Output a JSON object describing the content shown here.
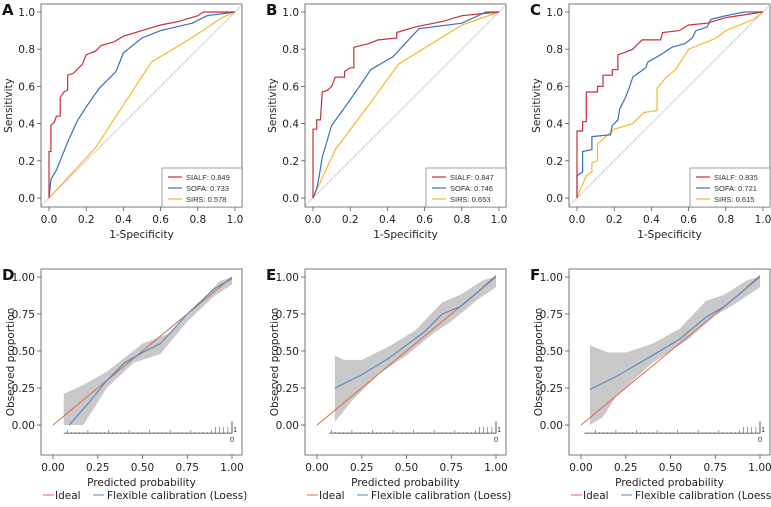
{
  "colors": {
    "SIALF": "#c8303a",
    "SOFA": "#3b6fb5",
    "SIRS": "#f2b833",
    "diagonal": "#c8c8c8",
    "ideal": "#e0654a",
    "loess": "#4f86c6",
    "band": "#c9c9c9"
  },
  "chart_data": [
    {
      "panel": "A",
      "type": "line",
      "xlabel": "1-Specificity",
      "ylabel": "Sensitivity",
      "xlim": [
        0,
        1
      ],
      "ylim": [
        0,
        1
      ],
      "xticks": [
        "0.0",
        "0.2",
        "0.4",
        "0.6",
        "0.8",
        "1.0"
      ],
      "yticks": [
        "0.0",
        "0.2",
        "0.4",
        "0.6",
        "0.8",
        "1.0"
      ],
      "legend_placement": "bottom-right",
      "grid": false,
      "series": [
        {
          "name": "SIALF",
          "auc_label": "SIALF: 0.849",
          "points": [
            [
              0,
              0
            ],
            [
              0,
              0.25
            ],
            [
              0.01,
              0.25
            ],
            [
              0.01,
              0.39
            ],
            [
              0.03,
              0.41
            ],
            [
              0.04,
              0.44
            ],
            [
              0.06,
              0.44
            ],
            [
              0.06,
              0.54
            ],
            [
              0.08,
              0.57
            ],
            [
              0.1,
              0.58
            ],
            [
              0.1,
              0.66
            ],
            [
              0.13,
              0.67
            ],
            [
              0.15,
              0.69
            ],
            [
              0.18,
              0.72
            ],
            [
              0.2,
              0.77
            ],
            [
              0.25,
              0.79
            ],
            [
              0.28,
              0.82
            ],
            [
              0.35,
              0.84
            ],
            [
              0.4,
              0.87
            ],
            [
              0.5,
              0.9
            ],
            [
              0.6,
              0.93
            ],
            [
              0.7,
              0.95
            ],
            [
              0.8,
              0.98
            ],
            [
              0.83,
              1
            ],
            [
              1,
              1
            ]
          ]
        },
        {
          "name": "SOFA",
          "auc_label": "SOFA: 0.733",
          "points": [
            [
              0,
              0
            ],
            [
              0.01,
              0.1
            ],
            [
              0.04,
              0.15
            ],
            [
              0.1,
              0.3
            ],
            [
              0.15,
              0.41
            ],
            [
              0.2,
              0.49
            ],
            [
              0.27,
              0.59
            ],
            [
              0.36,
              0.68
            ],
            [
              0.4,
              0.78
            ],
            [
              0.5,
              0.86
            ],
            [
              0.6,
              0.9
            ],
            [
              0.77,
              0.94
            ],
            [
              0.85,
              0.98
            ],
            [
              1,
              1
            ]
          ]
        },
        {
          "name": "SIRS",
          "auc_label": "SIRS:  0.578",
          "points": [
            [
              0,
              0
            ],
            [
              0.25,
              0.27
            ],
            [
              0.55,
              0.73
            ],
            [
              0.75,
              0.85
            ],
            [
              0.93,
              0.97
            ],
            [
              1,
              1
            ]
          ]
        }
      ]
    },
    {
      "panel": "B",
      "type": "line",
      "xlabel": "1-Specificity",
      "ylabel": "Sensitivity",
      "xlim": [
        0,
        1
      ],
      "ylim": [
        0,
        1
      ],
      "xticks": [
        "0.0",
        "0.2",
        "0.4",
        "0.6",
        "0.8",
        "1.0"
      ],
      "yticks": [
        "0.0",
        "0.2",
        "0.4",
        "0.6",
        "0.8",
        "1.0"
      ],
      "legend_placement": "bottom-right",
      "grid": false,
      "series": [
        {
          "name": "SIALF",
          "auc_label": "SIALF: 0.847",
          "points": [
            [
              0,
              0
            ],
            [
              0,
              0.37
            ],
            [
              0.02,
              0.37
            ],
            [
              0.02,
              0.42
            ],
            [
              0.04,
              0.42
            ],
            [
              0.05,
              0.57
            ],
            [
              0.08,
              0.58
            ],
            [
              0.1,
              0.6
            ],
            [
              0.12,
              0.65
            ],
            [
              0.17,
              0.65
            ],
            [
              0.17,
              0.68
            ],
            [
              0.2,
              0.7
            ],
            [
              0.22,
              0.7
            ],
            [
              0.22,
              0.81
            ],
            [
              0.3,
              0.83
            ],
            [
              0.35,
              0.85
            ],
            [
              0.45,
              0.86
            ],
            [
              0.45,
              0.89
            ],
            [
              0.55,
              0.92
            ],
            [
              0.7,
              0.95
            ],
            [
              0.8,
              0.98
            ],
            [
              1,
              1
            ]
          ]
        },
        {
          "name": "SOFA",
          "auc_label": "SOFA: 0.746",
          "points": [
            [
              0,
              0
            ],
            [
              0.02,
              0.05
            ],
            [
              0.03,
              0.1
            ],
            [
              0.05,
              0.22
            ],
            [
              0.1,
              0.39
            ],
            [
              0.18,
              0.5
            ],
            [
              0.25,
              0.6
            ],
            [
              0.31,
              0.69
            ],
            [
              0.43,
              0.76
            ],
            [
              0.57,
              0.91
            ],
            [
              0.8,
              0.94
            ],
            [
              0.93,
              1
            ],
            [
              1,
              1
            ]
          ]
        },
        {
          "name": "SIRS",
          "auc_label": "SIRS:  0.653",
          "points": [
            [
              0,
              0
            ],
            [
              0.12,
              0.26
            ],
            [
              0.3,
              0.5
            ],
            [
              0.46,
              0.72
            ],
            [
              0.8,
              0.93
            ],
            [
              1,
              1
            ]
          ]
        }
      ]
    },
    {
      "panel": "C",
      "type": "line",
      "xlabel": "1-Specificity",
      "ylabel": "Sensitivity",
      "xlim": [
        0,
        1
      ],
      "ylim": [
        0,
        1
      ],
      "xticks": [
        "0.0",
        "0.2",
        "0.4",
        "0.6",
        "0.8",
        "1.0"
      ],
      "yticks": [
        "0.0",
        "0.2",
        "0.4",
        "0.6",
        "0.8",
        "1.0"
      ],
      "legend_placement": "bottom-right",
      "grid": false,
      "series": [
        {
          "name": "SIALF",
          "auc_label": "SIALF: 0.835",
          "points": [
            [
              0,
              0
            ],
            [
              0,
              0.36
            ],
            [
              0.03,
              0.36
            ],
            [
              0.03,
              0.41
            ],
            [
              0.05,
              0.41
            ],
            [
              0.05,
              0.57
            ],
            [
              0.11,
              0.57
            ],
            [
              0.11,
              0.6
            ],
            [
              0.14,
              0.6
            ],
            [
              0.14,
              0.66
            ],
            [
              0.19,
              0.66
            ],
            [
              0.19,
              0.69
            ],
            [
              0.22,
              0.69
            ],
            [
              0.22,
              0.77
            ],
            [
              0.25,
              0.78
            ],
            [
              0.3,
              0.8
            ],
            [
              0.33,
              0.83
            ],
            [
              0.35,
              0.85
            ],
            [
              0.45,
              0.85
            ],
            [
              0.46,
              0.89
            ],
            [
              0.55,
              0.9
            ],
            [
              0.6,
              0.93
            ],
            [
              0.7,
              0.94
            ],
            [
              0.8,
              0.97
            ],
            [
              1,
              1
            ]
          ]
        },
        {
          "name": "SOFA",
          "auc_label": "SOFA: 0.721",
          "points": [
            [
              0,
              0
            ],
            [
              0,
              0.12
            ],
            [
              0.03,
              0.14
            ],
            [
              0.03,
              0.25
            ],
            [
              0.08,
              0.26
            ],
            [
              0.08,
              0.33
            ],
            [
              0.18,
              0.34
            ],
            [
              0.19,
              0.39
            ],
            [
              0.22,
              0.42
            ],
            [
              0.23,
              0.48
            ],
            [
              0.26,
              0.54
            ],
            [
              0.28,
              0.59
            ],
            [
              0.3,
              0.65
            ],
            [
              0.37,
              0.7
            ],
            [
              0.38,
              0.73
            ],
            [
              0.45,
              0.77
            ],
            [
              0.51,
              0.81
            ],
            [
              0.58,
              0.83
            ],
            [
              0.62,
              0.86
            ],
            [
              0.64,
              0.9
            ],
            [
              0.7,
              0.92
            ],
            [
              0.72,
              0.96
            ],
            [
              0.8,
              0.98
            ],
            [
              0.9,
              1
            ],
            [
              1,
              1
            ]
          ]
        },
        {
          "name": "SIRS",
          "auc_label": "SIRS:  0.615",
          "points": [
            [
              0,
              0
            ],
            [
              0.05,
              0.12
            ],
            [
              0.08,
              0.14
            ],
            [
              0.08,
              0.19
            ],
            [
              0.11,
              0.2
            ],
            [
              0.11,
              0.29
            ],
            [
              0.2,
              0.37
            ],
            [
              0.3,
              0.4
            ],
            [
              0.36,
              0.46
            ],
            [
              0.43,
              0.47
            ],
            [
              0.43,
              0.59
            ],
            [
              0.48,
              0.65
            ],
            [
              0.53,
              0.69
            ],
            [
              0.6,
              0.8
            ],
            [
              0.75,
              0.86
            ],
            [
              0.8,
              0.9
            ],
            [
              0.95,
              0.96
            ],
            [
              1,
              1
            ]
          ]
        }
      ]
    },
    {
      "panel": "D",
      "type": "line",
      "xlabel": "Predicted probability",
      "ylabel": "Observed proportion",
      "xlim": [
        0,
        1
      ],
      "ylim": [
        0,
        1
      ],
      "xticks": [
        "0.00",
        "0.25",
        "0.50",
        "0.75",
        "1.00"
      ],
      "yticks": [
        "0.00",
        "0.25",
        "0.50",
        "0.75",
        "1.00"
      ],
      "legend_placement": "bottom",
      "grid": false,
      "legend": [
        "Ideal",
        "Flexible calibration (Loess)"
      ],
      "rug_labels": [
        "1",
        "0"
      ],
      "ideal": [
        [
          0,
          0
        ],
        [
          1,
          1
        ]
      ],
      "loess": [
        [
          0.09,
          0
        ],
        [
          0.2,
          0.15
        ],
        [
          0.3,
          0.3
        ],
        [
          0.4,
          0.42
        ],
        [
          0.5,
          0.49
        ],
        [
          0.6,
          0.55
        ],
        [
          0.75,
          0.75
        ],
        [
          0.9,
          0.92
        ],
        [
          1,
          0.99
        ]
      ],
      "ci_lower": [
        [
          0.06,
          0
        ],
        [
          0.17,
          0
        ],
        [
          0.3,
          0.25
        ],
        [
          0.45,
          0.42
        ],
        [
          0.6,
          0.48
        ],
        [
          0.75,
          0.7
        ],
        [
          0.9,
          0.87
        ],
        [
          1,
          0.95
        ]
      ],
      "ci_upper": [
        [
          0.06,
          0.21
        ],
        [
          0.17,
          0.27
        ],
        [
          0.3,
          0.36
        ],
        [
          0.5,
          0.55
        ],
        [
          0.65,
          0.62
        ],
        [
          0.8,
          0.8
        ],
        [
          0.93,
          0.97
        ],
        [
          1,
          1.0
        ]
      ]
    },
    {
      "panel": "E",
      "type": "line",
      "xlabel": "Predicted probability",
      "ylabel": "Observed proportion",
      "xlim": [
        0,
        1
      ],
      "ylim": [
        0,
        1
      ],
      "xticks": [
        "0.00",
        "0.25",
        "0.50",
        "0.75",
        "1.00"
      ],
      "yticks": [
        "0.00",
        "0.25",
        "0.50",
        "0.75",
        "1.00"
      ],
      "legend_placement": "bottom",
      "grid": false,
      "legend": [
        "Ideal",
        "Flexible calibration (Loess)"
      ],
      "rug_labels": [
        "1",
        "0"
      ],
      "ideal": [
        [
          0,
          0
        ],
        [
          1,
          1
        ]
      ],
      "loess": [
        [
          0.1,
          0.25
        ],
        [
          0.25,
          0.34
        ],
        [
          0.4,
          0.45
        ],
        [
          0.5,
          0.54
        ],
        [
          0.6,
          0.63
        ],
        [
          0.7,
          0.75
        ],
        [
          0.8,
          0.8
        ],
        [
          0.9,
          0.9
        ],
        [
          1,
          1.01
        ]
      ],
      "ci_lower": [
        [
          0.1,
          0.02
        ],
        [
          0.2,
          0.17
        ],
        [
          0.35,
          0.35
        ],
        [
          0.5,
          0.47
        ],
        [
          0.65,
          0.62
        ],
        [
          0.75,
          0.7
        ],
        [
          0.9,
          0.85
        ],
        [
          1,
          0.93
        ]
      ],
      "ci_upper": [
        [
          0.1,
          0.47
        ],
        [
          0.15,
          0.44
        ],
        [
          0.25,
          0.44
        ],
        [
          0.4,
          0.53
        ],
        [
          0.55,
          0.64
        ],
        [
          0.7,
          0.83
        ],
        [
          0.8,
          0.88
        ],
        [
          0.93,
          0.98
        ],
        [
          1,
          1
        ]
      ]
    },
    {
      "panel": "F",
      "type": "line",
      "xlabel": "Predicted probability",
      "ylabel": "Observed proportion",
      "xlim": [
        0,
        1
      ],
      "ylim": [
        0,
        1
      ],
      "xticks": [
        "0.00",
        "0.25",
        "0.50",
        "0.75",
        "1.00"
      ],
      "yticks": [
        "0.00",
        "0.25",
        "0.50",
        "0.75",
        "1.00"
      ],
      "legend_placement": "bottom",
      "grid": false,
      "legend": [
        "Ideal",
        "Flexible calibration (Loess)"
      ],
      "rug_labels": [
        "1",
        "0"
      ],
      "ideal": [
        [
          0,
          0
        ],
        [
          1,
          1
        ]
      ],
      "loess": [
        [
          0.05,
          0.24
        ],
        [
          0.2,
          0.33
        ],
        [
          0.4,
          0.47
        ],
        [
          0.55,
          0.58
        ],
        [
          0.7,
          0.73
        ],
        [
          0.8,
          0.8
        ],
        [
          0.9,
          0.9
        ],
        [
          1,
          1.01
        ]
      ],
      "ci_lower": [
        [
          0.05,
          0
        ],
        [
          0.12,
          0.05
        ],
        [
          0.2,
          0.2
        ],
        [
          0.4,
          0.42
        ],
        [
          0.6,
          0.58
        ],
        [
          0.75,
          0.74
        ],
        [
          0.85,
          0.81
        ],
        [
          1,
          0.93
        ]
      ],
      "ci_upper": [
        [
          0.05,
          0.54
        ],
        [
          0.15,
          0.49
        ],
        [
          0.25,
          0.49
        ],
        [
          0.4,
          0.55
        ],
        [
          0.55,
          0.65
        ],
        [
          0.7,
          0.84
        ],
        [
          0.8,
          0.88
        ],
        [
          0.93,
          0.98
        ],
        [
          1,
          1
        ]
      ]
    }
  ]
}
